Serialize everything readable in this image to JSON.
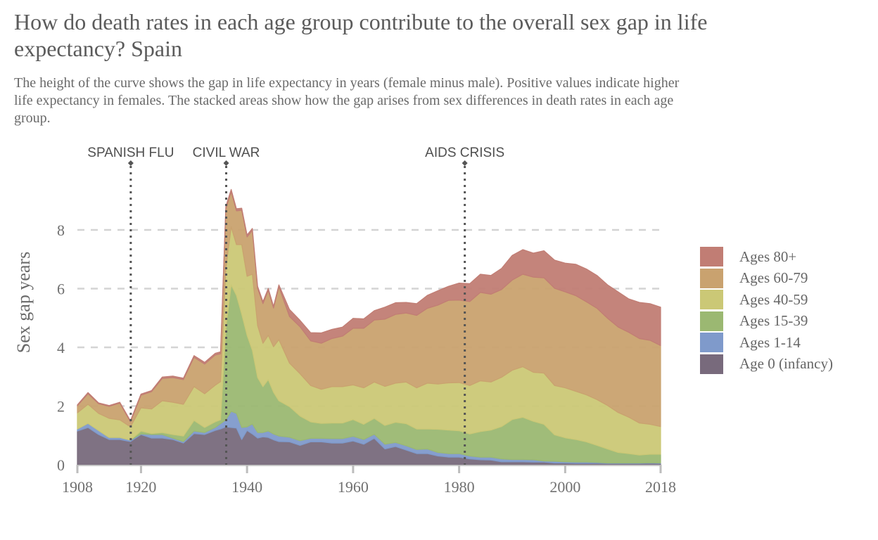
{
  "title_lines": [
    "How do death rates in each age group contribute to the overall sex gap in life",
    "expectancy? Spain"
  ],
  "subtitle_lines": [
    "The height of the curve shows the gap in life expectancy in years (female minus male). Positive values indicate higher",
    "life expectancy in females. The stacked areas show how the gap arises from sex differences in death rates in each age",
    "group."
  ],
  "chart_data": {
    "type": "area",
    "stacked": true,
    "ylabel": "Sex gap years",
    "xlabel": "",
    "xlim": [
      1908,
      2018
    ],
    "ylim": [
      0,
      9.5
    ],
    "x_ticks": [
      1908,
      1920,
      1940,
      1960,
      1980,
      2000,
      2018
    ],
    "y_ticks": [
      0,
      2,
      4,
      6,
      8
    ],
    "grid": "horizontal dashed",
    "legend_position": "right",
    "annotations": [
      {
        "label": "SPANISH FLU",
        "year": 1918
      },
      {
        "label": "CIVIL WAR",
        "year": 1936
      },
      {
        "label": "AIDS CRISIS",
        "year": 1981
      }
    ],
    "x": [
      1908,
      1910,
      1912,
      1914,
      1916,
      1918,
      1920,
      1922,
      1924,
      1926,
      1928,
      1930,
      1932,
      1934,
      1935,
      1936,
      1937,
      1938,
      1939,
      1940,
      1941,
      1942,
      1943,
      1944,
      1945,
      1946,
      1948,
      1950,
      1952,
      1954,
      1956,
      1958,
      1960,
      1962,
      1964,
      1966,
      1968,
      1970,
      1972,
      1974,
      1976,
      1978,
      1980,
      1982,
      1984,
      1986,
      1988,
      1990,
      1992,
      1994,
      1996,
      1998,
      2000,
      2002,
      2004,
      2006,
      2008,
      2010,
      2012,
      2014,
      2016,
      2018
    ],
    "series": [
      {
        "name": "Age 0 (infancy)",
        "color": "#786a7c",
        "values": [
          1.15,
          1.27,
          1.03,
          0.86,
          0.86,
          0.79,
          1.03,
          0.91,
          0.91,
          0.86,
          0.74,
          1.06,
          1.03,
          1.17,
          1.22,
          1.29,
          1.27,
          1.25,
          0.86,
          1.17,
          1.05,
          0.91,
          0.95,
          0.93,
          0.85,
          0.79,
          0.78,
          0.66,
          0.78,
          0.78,
          0.74,
          0.74,
          0.81,
          0.7,
          0.9,
          0.54,
          0.62,
          0.5,
          0.38,
          0.38,
          0.3,
          0.26,
          0.26,
          0.2,
          0.17,
          0.16,
          0.1,
          0.1,
          0.1,
          0.09,
          0.09,
          0.06,
          0.06,
          0.05,
          0.05,
          0.05,
          0.04,
          0.04,
          0.04,
          0.04,
          0.05,
          0.04
        ]
      },
      {
        "name": "Ages 1-14",
        "color": "#7f9acb",
        "values": [
          0.07,
          0.14,
          0.14,
          0.07,
          0.07,
          0.05,
          0.02,
          0.12,
          0.12,
          0.05,
          0.05,
          0.09,
          0.07,
          0.1,
          0.18,
          0.24,
          0.55,
          0.5,
          0.41,
          0.12,
          0.34,
          0.19,
          0.15,
          0.22,
          0.2,
          0.19,
          0.16,
          0.16,
          0.12,
          0.12,
          0.15,
          0.15,
          0.16,
          0.16,
          0.14,
          0.16,
          0.14,
          0.15,
          0.14,
          0.16,
          0.12,
          0.12,
          0.12,
          0.1,
          0.09,
          0.1,
          0.1,
          0.08,
          0.08,
          0.08,
          0.04,
          0.06,
          0.04,
          0.04,
          0.04,
          0.03,
          0.02,
          0.02,
          0.02,
          0.02,
          0.02,
          0.02
        ]
      },
      {
        "name": "Ages 15-39",
        "color": "#9bb872",
        "values": [
          0,
          0,
          0,
          0,
          0,
          0,
          0.1,
          0.03,
          0.07,
          0.12,
          0.19,
          0.36,
          0.17,
          0.19,
          0.13,
          3.12,
          4.31,
          4.02,
          3.86,
          3.12,
          2.51,
          1.87,
          1.56,
          1.75,
          1.42,
          1.2,
          1.04,
          0.84,
          0.56,
          0.51,
          0.53,
          0.53,
          0.57,
          0.52,
          0.54,
          0.64,
          0.69,
          0.75,
          0.7,
          0.68,
          0.79,
          0.8,
          0.78,
          0.75,
          0.87,
          0.92,
          1.1,
          1.36,
          1.44,
          1.31,
          1.25,
          0.9,
          0.82,
          0.77,
          0.69,
          0.58,
          0.48,
          0.36,
          0.32,
          0.27,
          0.29,
          0.3
        ]
      },
      {
        "name": "Ages 40-59",
        "color": "#cbc876",
        "values": [
          0.55,
          0.65,
          0.58,
          0.65,
          0.6,
          0.45,
          0.79,
          0.84,
          1.08,
          1.1,
          1.08,
          1.15,
          1.15,
          1.25,
          1.3,
          2.04,
          1.97,
          1.73,
          2.37,
          2.01,
          2.59,
          1.77,
          1.48,
          1.51,
          1.55,
          2.08,
          1.48,
          1.44,
          1.24,
          1.16,
          1.24,
          1.24,
          1.18,
          1.24,
          1.24,
          1.33,
          1.33,
          1.42,
          1.4,
          1.56,
          1.54,
          1.61,
          1.64,
          1.65,
          1.73,
          1.64,
          1.68,
          1.68,
          1.72,
          1.67,
          1.74,
          1.68,
          1.7,
          1.64,
          1.6,
          1.56,
          1.48,
          1.36,
          1.24,
          1.09,
          1.02,
          0.94
        ]
      },
      {
        "name": "Ages 60-79",
        "color": "#c9a26f",
        "values": [
          0.24,
          0.36,
          0.33,
          0.41,
          0.57,
          0.17,
          0.43,
          0.59,
          0.76,
          0.84,
          0.84,
          1.0,
          1.01,
          1.03,
          0.95,
          2.03,
          1.2,
          1.15,
          1.17,
          1.34,
          1.49,
          1.27,
          1.35,
          1.53,
          1.32,
          1.8,
          1.59,
          1.6,
          1.52,
          1.57,
          1.64,
          1.72,
          1.93,
          2.03,
          2.11,
          2.29,
          2.34,
          2.35,
          2.47,
          2.55,
          2.69,
          2.81,
          2.81,
          2.86,
          3.01,
          2.99,
          2.99,
          3.07,
          3.15,
          3.24,
          3.25,
          3.31,
          3.27,
          3.26,
          3.17,
          3.11,
          2.97,
          2.91,
          2.89,
          2.88,
          2.86,
          2.76
        ]
      },
      {
        "name": "Ages 80+",
        "color": "#c17d74",
        "values": [
          0.03,
          0.04,
          0.03,
          0.03,
          0.03,
          0.04,
          0.04,
          0.04,
          0.05,
          0.05,
          0.05,
          0.06,
          0.06,
          0.06,
          0.07,
          0.08,
          0.08,
          0.07,
          0.07,
          0.07,
          0.07,
          0.07,
          0.07,
          0.07,
          0.06,
          0.07,
          0.24,
          0.22,
          0.28,
          0.35,
          0.31,
          0.31,
          0.34,
          0.32,
          0.32,
          0.41,
          0.4,
          0.36,
          0.4,
          0.44,
          0.49,
          0.48,
          0.58,
          0.61,
          0.62,
          0.64,
          0.72,
          0.84,
          0.84,
          0.82,
          0.92,
          0.96,
          0.98,
          1.07,
          1.12,
          1.12,
          1.14,
          1.2,
          1.14,
          1.23,
          1.25,
          1.31
        ]
      }
    ]
  }
}
